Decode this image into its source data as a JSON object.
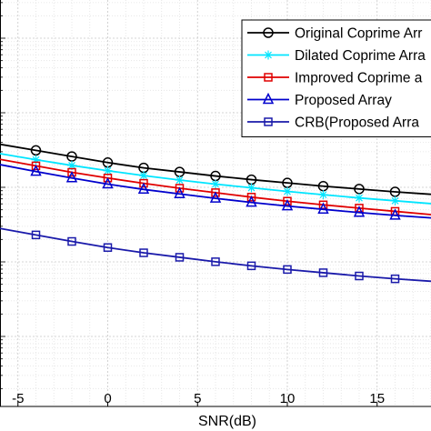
{
  "chart_data": {
    "type": "line",
    "xlabel": "SNR(dB)",
    "ylabel": "",
    "title": "",
    "x": [
      -6,
      -4,
      -2,
      0,
      2,
      4,
      6,
      8,
      10,
      12,
      14,
      16,
      18
    ],
    "xlim": [
      -6,
      18
    ],
    "xticks": [
      -5,
      0,
      5,
      10,
      15
    ],
    "xtick_labels": [
      "-5",
      "0",
      "5",
      "10",
      "15"
    ],
    "y_scale": "log",
    "y_tick_labels_visible": false,
    "grid": true,
    "legend_placement": "top-right",
    "series": [
      {
        "name": "Original Coprime Array",
        "label_visible": "Original Coprime Arr",
        "color": "#000000",
        "marker": "circle",
        "values_relative_pos": [
          0.355,
          0.37,
          0.385,
          0.4,
          0.413,
          0.423,
          0.433,
          0.442,
          0.45,
          0.458,
          0.465,
          0.472,
          0.478
        ]
      },
      {
        "name": "Dilated Coprime Array",
        "label_visible": "Dilated Coprime Arra",
        "color": "#00e5ff",
        "marker": "asterisk",
        "values_relative_pos": [
          0.378,
          0.393,
          0.407,
          0.42,
          0.432,
          0.443,
          0.453,
          0.462,
          0.471,
          0.479,
          0.487,
          0.494,
          0.501
        ]
      },
      {
        "name": "Improved Coprime array",
        "label_visible": "Improved Coprime a",
        "color": "#e00000",
        "marker": "square",
        "values_relative_pos": [
          0.392,
          0.408,
          0.424,
          0.438,
          0.451,
          0.463,
          0.474,
          0.485,
          0.495,
          0.504,
          0.512,
          0.52,
          0.528
        ]
      },
      {
        "name": "Proposed Array",
        "label_visible": "Proposed Array",
        "color": "#0000cc",
        "marker": "triangle",
        "values_relative_pos": [
          0.405,
          0.422,
          0.438,
          0.453,
          0.466,
          0.477,
          0.488,
          0.498,
          0.507,
          0.515,
          0.523,
          0.53,
          0.536
        ]
      },
      {
        "name": "CRB(Proposed Array)",
        "label_visible": "CRB(Proposed Arra",
        "color": "#1a1aaa",
        "marker": "square",
        "values_relative_pos": [
          0.562,
          0.578,
          0.594,
          0.609,
          0.622,
          0.633,
          0.644,
          0.654,
          0.663,
          0.671,
          0.679,
          0.686,
          0.692
        ]
      }
    ]
  }
}
